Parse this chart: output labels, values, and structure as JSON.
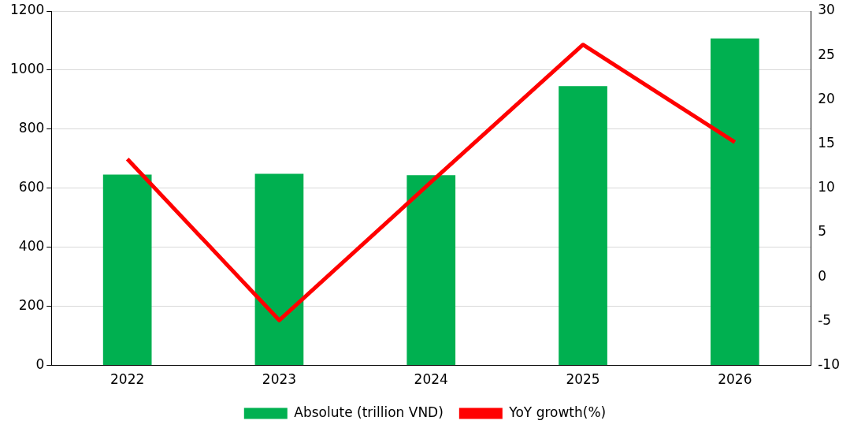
{
  "chart_data": {
    "type": "bar",
    "categories": [
      "2022",
      "2023",
      "2024",
      "2025",
      "2026"
    ],
    "series": [
      {
        "name": "Absolute (trillion VND)",
        "color": "#00b050",
        "values": [
          646,
          649,
          644,
          946,
          1107
        ]
      },
      {
        "name": "YoY growth(%)",
        "type": "line",
        "axis": "y2",
        "color": "#ff0000",
        "values": [
          13.3,
          -4.9,
          10.7,
          26.2,
          15.2
        ]
      }
    ],
    "ylim": [
      0,
      1200
    ],
    "yticks": [
      0,
      200,
      400,
      600,
      800,
      1000,
      1200
    ],
    "y2lim": [
      -10,
      30
    ],
    "y2ticks": [
      -10,
      -5,
      0,
      5,
      10,
      15,
      20,
      25,
      30
    ],
    "grid": "y",
    "legend": "bottom",
    "marker": "none",
    "line_style": "solid"
  }
}
